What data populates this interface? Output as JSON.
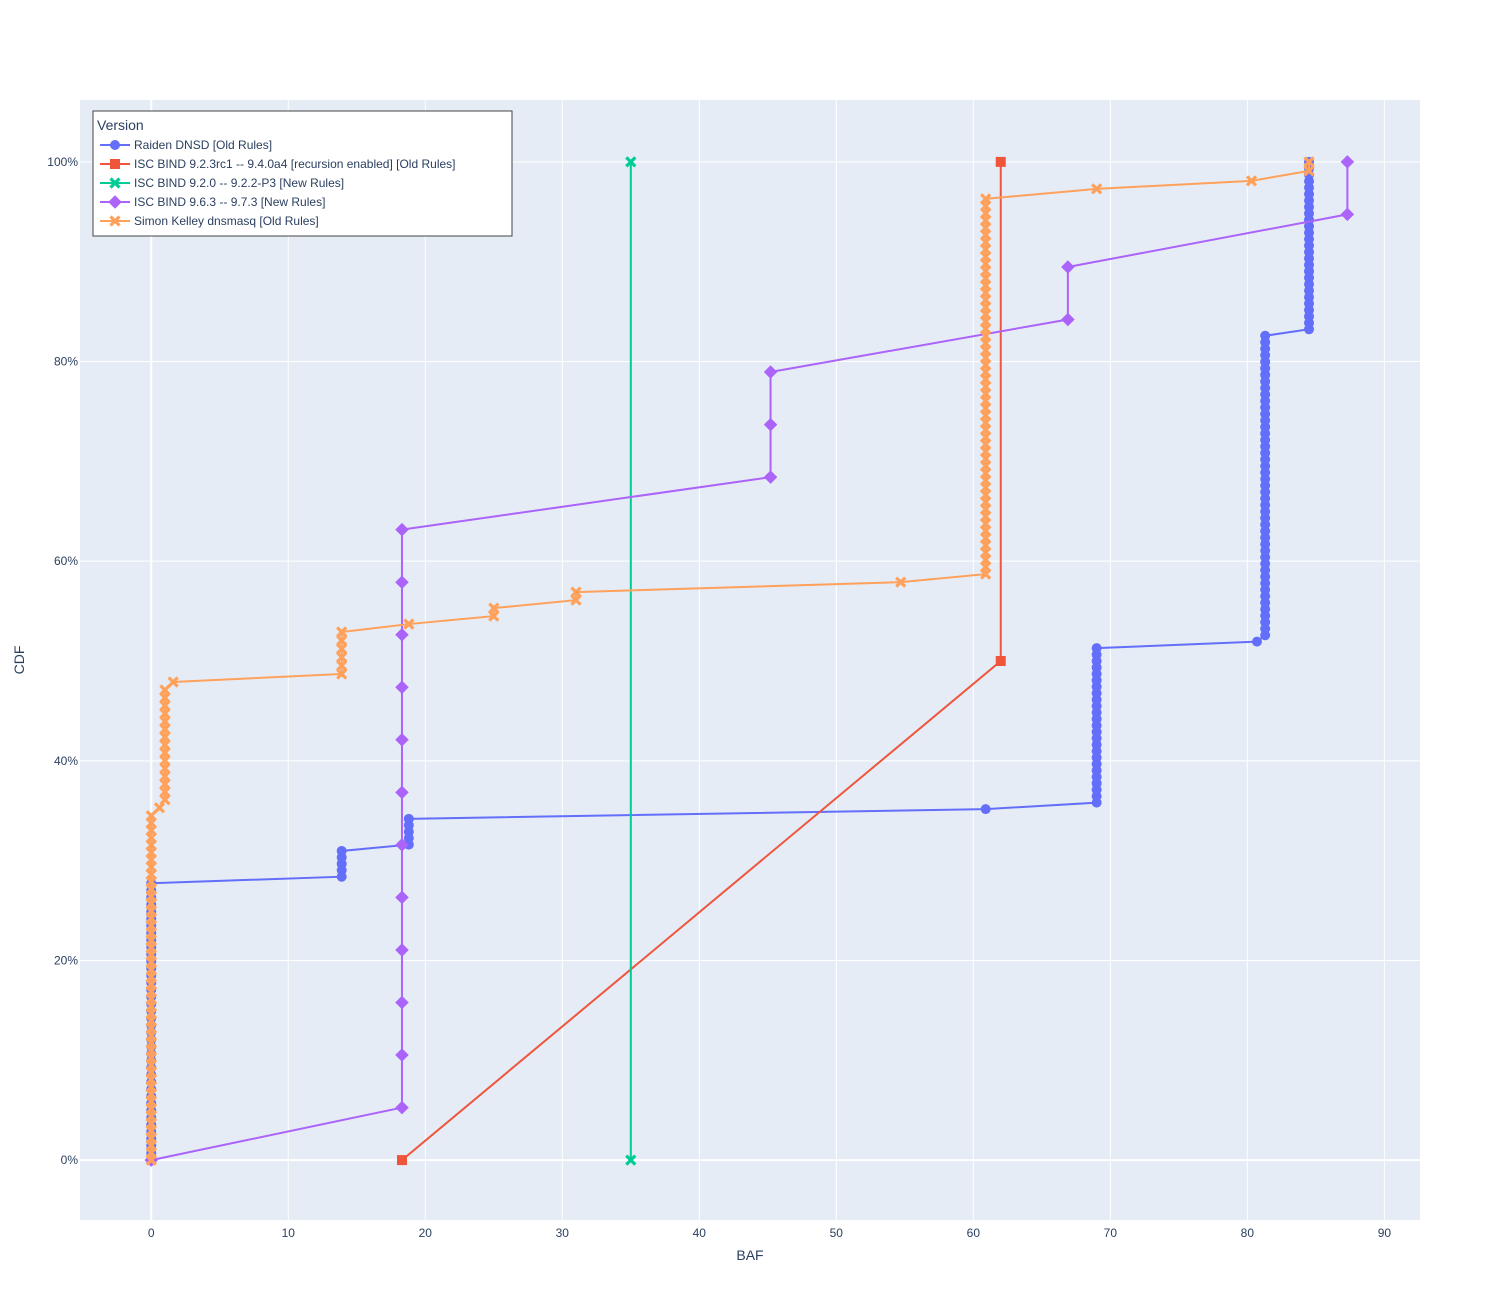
{
  "chart_data": {
    "type": "line",
    "xlabel": "BAF",
    "ylabel": "CDF",
    "xlim": [
      -5.2,
      92.6
    ],
    "ylim": [
      -0.06,
      1.062
    ],
    "x_ticks": [
      0,
      10,
      20,
      30,
      40,
      50,
      60,
      70,
      80,
      90
    ],
    "x_tick_labels": [
      "0",
      "10",
      "20",
      "30",
      "40",
      "50",
      "60",
      "70",
      "80",
      "90"
    ],
    "y_ticks": [
      0,
      0.2,
      0.4,
      0.6,
      0.8,
      1.0
    ],
    "y_tick_labels": [
      "0%",
      "20%",
      "40%",
      "60%",
      "80%",
      "100%"
    ],
    "grid": true,
    "legend": {
      "title": "Version",
      "position": "top-left"
    },
    "series": [
      {
        "name": "Raiden DNSD  [Old Rules]",
        "color": "#636efa",
        "marker": "circle",
        "segments": [
          {
            "x": 0,
            "y_from": 0.0,
            "y_to": 0.2774,
            "n": 40
          },
          {
            "x": 13.9,
            "y_from": 0.2839,
            "y_to": 0.3097,
            "n": 5
          },
          {
            "x": 18.8,
            "y_from": 0.3161,
            "y_to": 0.3419,
            "n": 5
          },
          {
            "x": 60.9,
            "y_from": 0.3516,
            "y_to": 0.3516,
            "n": 1
          },
          {
            "x": 69.0,
            "y_from": 0.3581,
            "y_to": 0.5129,
            "n": 25
          },
          {
            "x": 80.7,
            "y_from": 0.5194,
            "y_to": 0.5194,
            "n": 1
          },
          {
            "x": 81.3,
            "y_from": 0.5258,
            "y_to": 0.8258,
            "n": 47
          },
          {
            "x": 84.5,
            "y_from": 0.8323,
            "y_to": 1.0,
            "n": 27
          }
        ]
      },
      {
        "name": "ISC BIND 9.2.3rc1 -- 9.4.0a4 [recursion enabled] [Old Rules]",
        "color": "#EF553B",
        "marker": "square",
        "points": [
          [
            18.3,
            0.0
          ],
          [
            62.0,
            0.5
          ],
          [
            62.0,
            1.0
          ]
        ]
      },
      {
        "name": "ISC BIND 9.2.0 -- 9.2.2-P3 [New Rules]",
        "color": "#00cc96",
        "marker": "x",
        "points": [
          [
            35.0,
            0.0
          ],
          [
            35.0,
            1.0
          ]
        ]
      },
      {
        "name": "ISC BIND 9.6.3 -- 9.7.3 [New Rules]",
        "color": "#ab63fa",
        "marker": "diamond",
        "points": [
          [
            0,
            0.0
          ],
          [
            18.3,
            0.0526
          ],
          [
            18.3,
            0.1053
          ],
          [
            18.3,
            0.1579
          ],
          [
            18.3,
            0.2105
          ],
          [
            18.3,
            0.2632
          ],
          [
            18.3,
            0.3158
          ],
          [
            18.3,
            0.3684
          ],
          [
            18.3,
            0.4211
          ],
          [
            18.3,
            0.4737
          ],
          [
            18.3,
            0.5263
          ],
          [
            18.3,
            0.5789
          ],
          [
            18.3,
            0.6316
          ],
          [
            45.2,
            0.6842
          ],
          [
            45.2,
            0.7368
          ],
          [
            45.2,
            0.7895
          ],
          [
            66.9,
            0.8421
          ],
          [
            66.9,
            0.8947
          ],
          [
            87.3,
            0.9474
          ],
          [
            87.3,
            1.0
          ]
        ]
      },
      {
        "name": "Simon Kelley dnsmasq  [Old Rules]",
        "color": "#FFA15A",
        "marker": "x",
        "segments": [
          {
            "x": 0,
            "y_from": 0.0,
            "y_to": 0.345,
            "n": 48
          },
          {
            "x": 0.6,
            "y_from": 0.353,
            "y_to": 0.353,
            "n": 1
          },
          {
            "x": 1.0,
            "y_from": 0.361,
            "y_to": 0.471,
            "n": 15
          },
          {
            "x": 1.6,
            "y_from": 0.479,
            "y_to": 0.479,
            "n": 1
          },
          {
            "x": 13.9,
            "y_from": 0.487,
            "y_to": 0.529,
            "n": 6
          },
          {
            "x": 18.8,
            "y_from": 0.537,
            "y_to": 0.537,
            "n": 1
          },
          {
            "x": 25.0,
            "y_from": 0.545,
            "y_to": 0.553,
            "n": 2
          },
          {
            "x": 31.0,
            "y_from": 0.561,
            "y_to": 0.569,
            "n": 2
          },
          {
            "x": 54.7,
            "y_from": 0.579,
            "y_to": 0.579,
            "n": 1
          },
          {
            "x": 60.9,
            "y_from": 0.587,
            "y_to": 0.963,
            "n": 53
          },
          {
            "x": 69.0,
            "y_from": 0.973,
            "y_to": 0.973,
            "n": 1
          },
          {
            "x": 80.3,
            "y_from": 0.981,
            "y_to": 0.981,
            "n": 1
          },
          {
            "x": 84.5,
            "y_from": 0.991,
            "y_to": 1.0,
            "n": 2
          }
        ]
      }
    ]
  }
}
